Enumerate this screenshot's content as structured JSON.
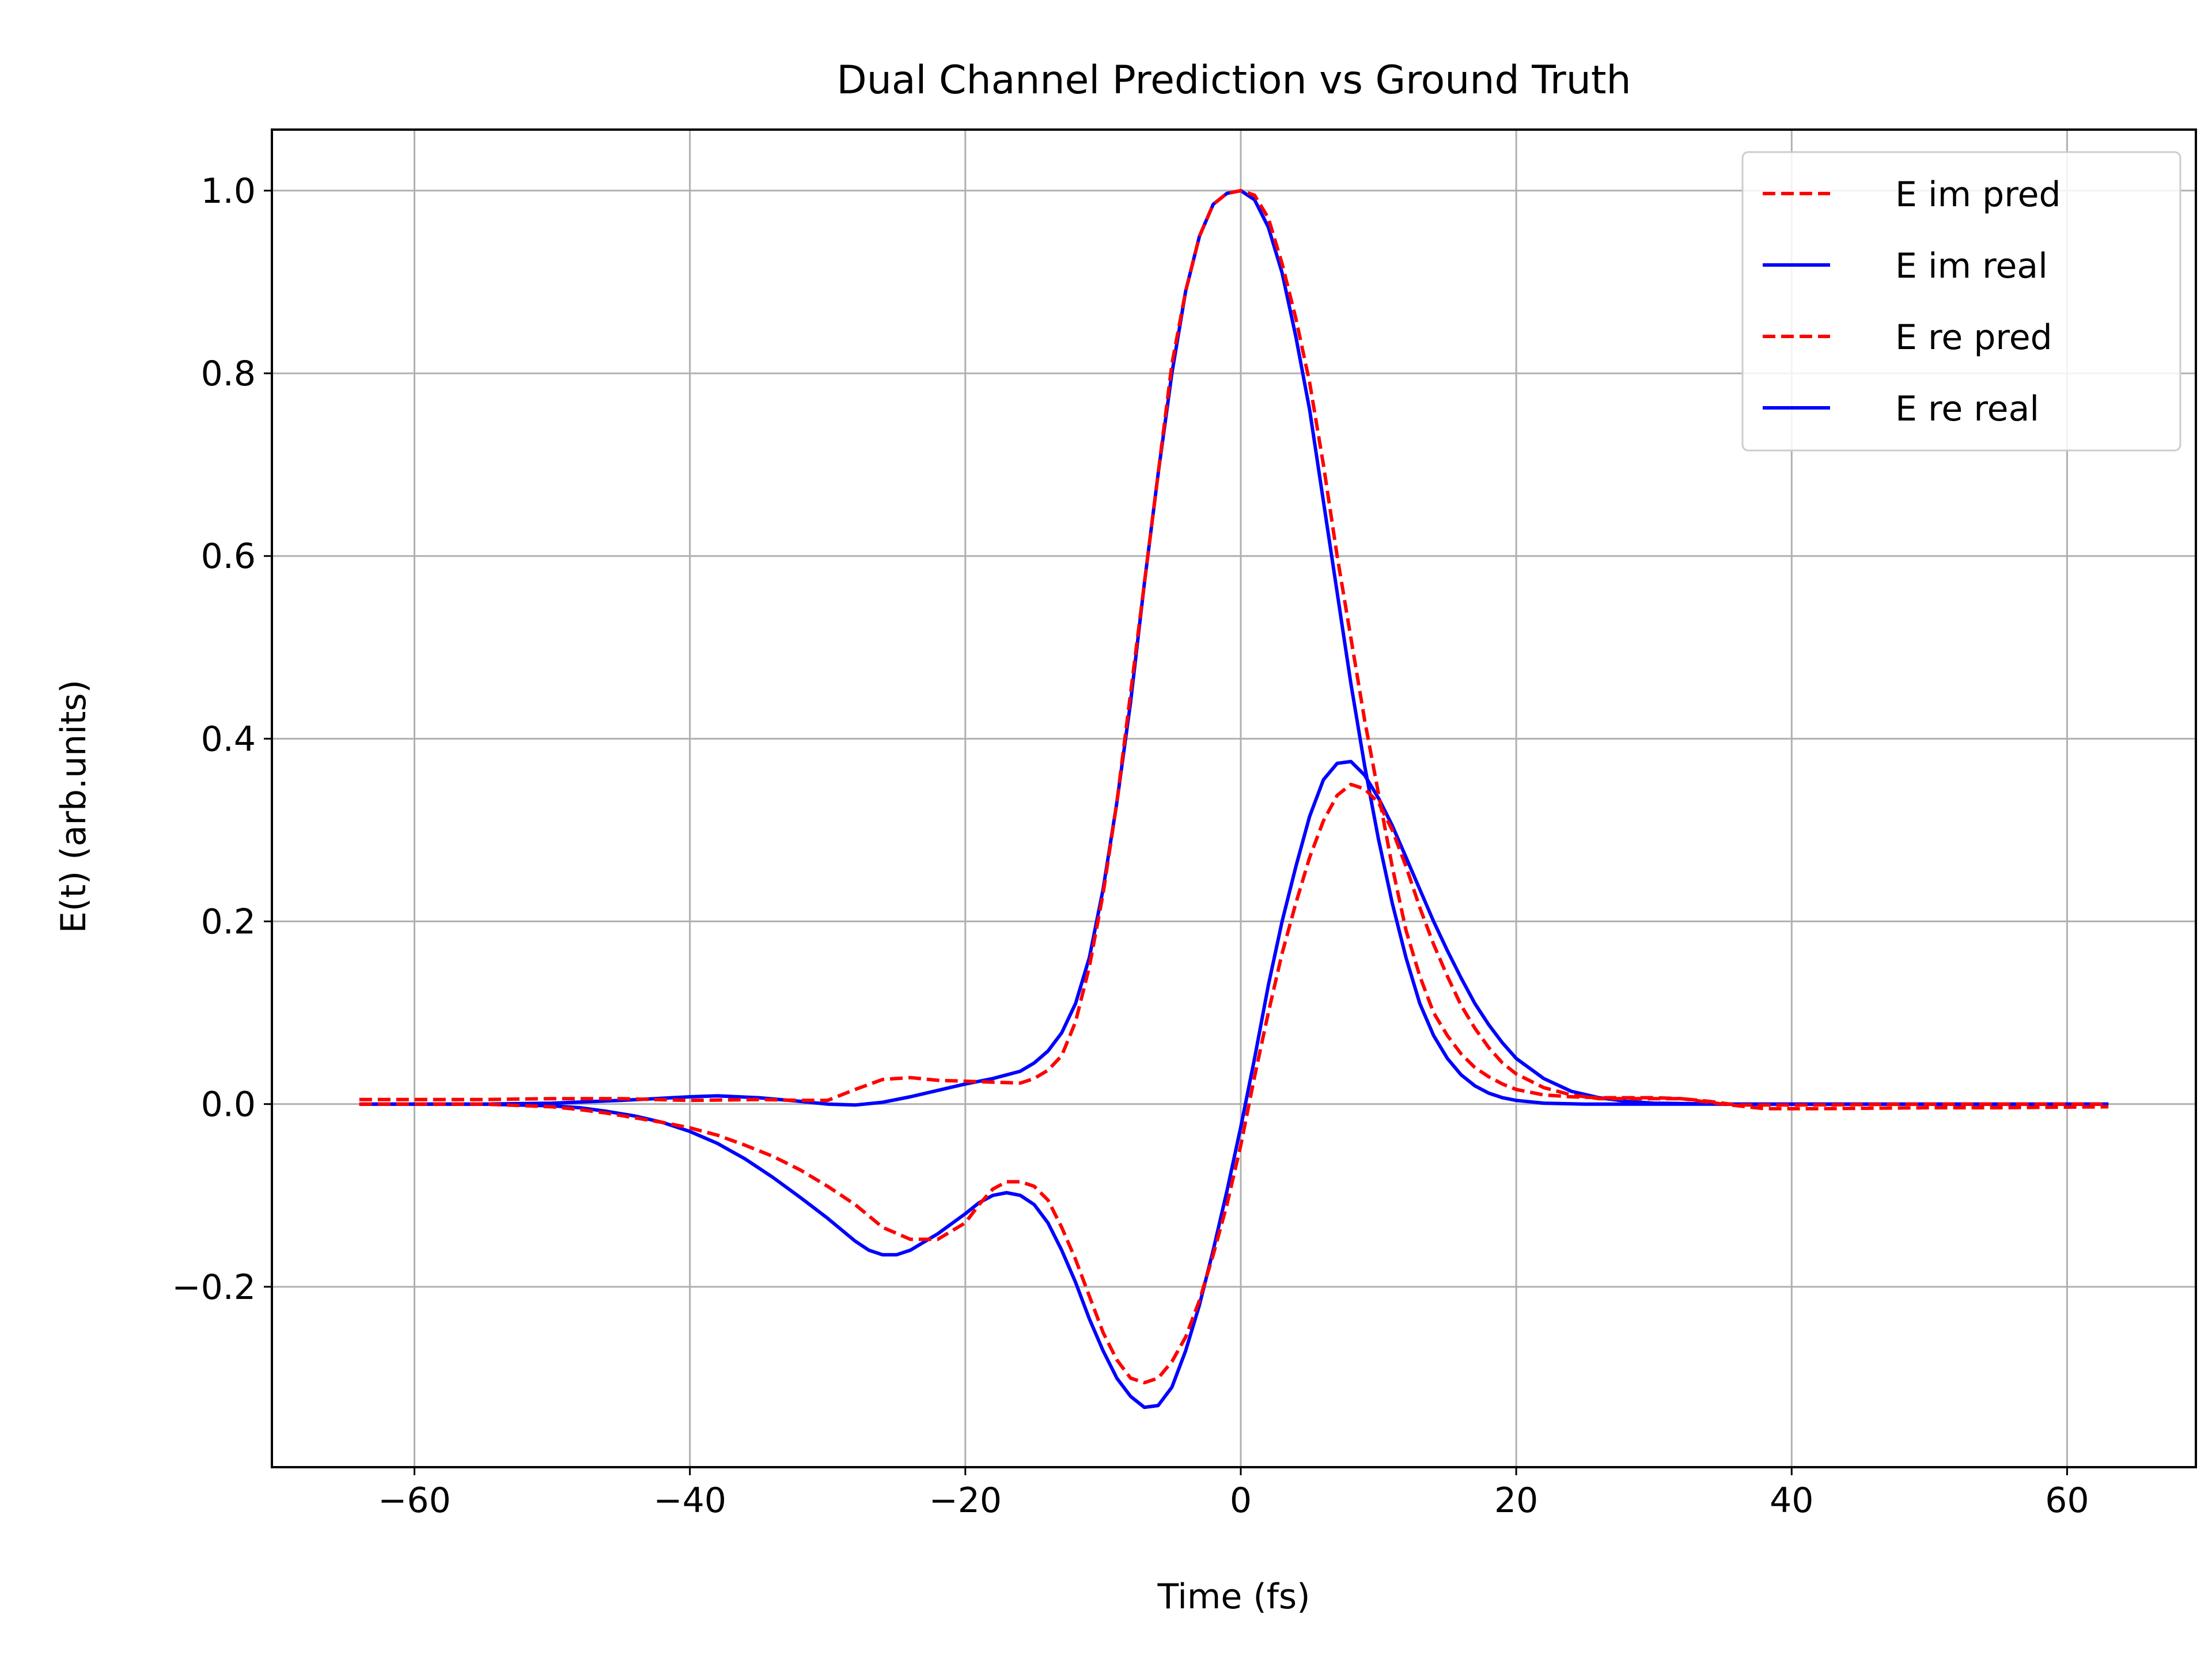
{
  "chart_data": {
    "type": "line",
    "title": "Dual Channel Prediction vs Ground Truth",
    "xlabel": "Time (fs)",
    "ylabel": "E(t) (arb.units)",
    "xlim": [
      -70.35,
      69.35
    ],
    "ylim": [
      -0.3975,
      1.0668
    ],
    "xticks": [
      -60,
      -40,
      -20,
      0,
      20,
      40,
      60
    ],
    "xtick_labels": [
      "−60",
      "−40",
      "−20",
      "0",
      "20",
      "40",
      "60"
    ],
    "yticks": [
      -0.2,
      0.0,
      0.2,
      0.4,
      0.6,
      0.8,
      1.0
    ],
    "ytick_labels": [
      "−0.2",
      "0.0",
      "0.2",
      "0.4",
      "0.6",
      "0.8",
      "1.0"
    ],
    "grid": true,
    "legend_position": "top-right",
    "series": [
      {
        "name": "E im pred",
        "color": "#ff0000",
        "style": "dashed",
        "points": [
          [
            -64,
            0.005
          ],
          [
            -55,
            0.005
          ],
          [
            -50,
            0.006
          ],
          [
            -45,
            0.006
          ],
          [
            -40,
            0.004
          ],
          [
            -35,
            0.005
          ],
          [
            -32,
            0.004
          ],
          [
            -30,
            0.004
          ],
          [
            -28,
            0.016
          ],
          [
            -26,
            0.027
          ],
          [
            -24,
            0.029
          ],
          [
            -22,
            0.026
          ],
          [
            -20,
            0.025
          ],
          [
            -18,
            0.024
          ],
          [
            -16,
            0.023
          ],
          [
            -15,
            0.028
          ],
          [
            -14,
            0.037
          ],
          [
            -13,
            0.053
          ],
          [
            -12,
            0.09
          ],
          [
            -11,
            0.15
          ],
          [
            -10,
            0.23
          ],
          [
            -9,
            0.33
          ],
          [
            -8,
            0.45
          ],
          [
            -7,
            0.57
          ],
          [
            -6,
            0.69
          ],
          [
            -5,
            0.81
          ],
          [
            -4,
            0.89
          ],
          [
            -3,
            0.95
          ],
          [
            -2,
            0.985
          ],
          [
            -1,
            0.997
          ],
          [
            0,
            1.0
          ],
          [
            1,
            0.995
          ],
          [
            2,
            0.97
          ],
          [
            3,
            0.92
          ],
          [
            4,
            0.86
          ],
          [
            5,
            0.79
          ],
          [
            6,
            0.7
          ],
          [
            7,
            0.6
          ],
          [
            8,
            0.51
          ],
          [
            9,
            0.42
          ],
          [
            10,
            0.34
          ],
          [
            11,
            0.26
          ],
          [
            12,
            0.19
          ],
          [
            13,
            0.14
          ],
          [
            14,
            0.1
          ],
          [
            15,
            0.075
          ],
          [
            16,
            0.055
          ],
          [
            17,
            0.04
          ],
          [
            18,
            0.03
          ],
          [
            19,
            0.022
          ],
          [
            20,
            0.016
          ],
          [
            22,
            0.01
          ],
          [
            24,
            0.008
          ],
          [
            26,
            0.007
          ],
          [
            28,
            0.007
          ],
          [
            30,
            0.007
          ],
          [
            32,
            0.006
          ],
          [
            35,
            0.0
          ],
          [
            38,
            -0.005
          ],
          [
            42,
            -0.005
          ],
          [
            50,
            -0.004
          ],
          [
            55,
            -0.004
          ],
          [
            63,
            -0.003
          ]
        ]
      },
      {
        "name": "E im real",
        "color": "#0000ff",
        "style": "solid",
        "points": [
          [
            -64,
            0.0
          ],
          [
            -55,
            0.0
          ],
          [
            -50,
            0.001
          ],
          [
            -45,
            0.004
          ],
          [
            -40,
            0.008
          ],
          [
            -38,
            0.009
          ],
          [
            -35,
            0.007
          ],
          [
            -32,
            0.003
          ],
          [
            -30,
            0.0
          ],
          [
            -28,
            -0.001
          ],
          [
            -26,
            0.002
          ],
          [
            -24,
            0.008
          ],
          [
            -22,
            0.015
          ],
          [
            -20,
            0.022
          ],
          [
            -18,
            0.028
          ],
          [
            -16,
            0.036
          ],
          [
            -15,
            0.045
          ],
          [
            -14,
            0.058
          ],
          [
            -13,
            0.078
          ],
          [
            -12,
            0.11
          ],
          [
            -11,
            0.16
          ],
          [
            -10,
            0.235
          ],
          [
            -9,
            0.33
          ],
          [
            -8,
            0.44
          ],
          [
            -7,
            0.57
          ],
          [
            -6,
            0.69
          ],
          [
            -5,
            0.8
          ],
          [
            -4,
            0.89
          ],
          [
            -3,
            0.95
          ],
          [
            -2,
            0.985
          ],
          [
            -1,
            0.997
          ],
          [
            0,
            1.0
          ],
          [
            1,
            0.99
          ],
          [
            2,
            0.96
          ],
          [
            3,
            0.91
          ],
          [
            4,
            0.84
          ],
          [
            5,
            0.76
          ],
          [
            6,
            0.66
          ],
          [
            7,
            0.56
          ],
          [
            8,
            0.46
          ],
          [
            9,
            0.37
          ],
          [
            10,
            0.29
          ],
          [
            11,
            0.22
          ],
          [
            12,
            0.16
          ],
          [
            13,
            0.11
          ],
          [
            14,
            0.075
          ],
          [
            15,
            0.05
          ],
          [
            16,
            0.032
          ],
          [
            17,
            0.02
          ],
          [
            18,
            0.012
          ],
          [
            19,
            0.007
          ],
          [
            20,
            0.004
          ],
          [
            22,
            0.001
          ],
          [
            25,
            0.0
          ],
          [
            30,
            0.0
          ],
          [
            40,
            0.0
          ],
          [
            50,
            0.0
          ],
          [
            63,
            0.0
          ]
        ]
      },
      {
        "name": "E re pred",
        "color": "#ff0000",
        "style": "dashed",
        "points": [
          [
            -64,
            0.0
          ],
          [
            -55,
            0.0
          ],
          [
            -50,
            -0.003
          ],
          [
            -48,
            -0.006
          ],
          [
            -46,
            -0.01
          ],
          [
            -44,
            -0.015
          ],
          [
            -42,
            -0.02
          ],
          [
            -40,
            -0.026
          ],
          [
            -38,
            -0.034
          ],
          [
            -36,
            -0.045
          ],
          [
            -34,
            -0.057
          ],
          [
            -32,
            -0.072
          ],
          [
            -30,
            -0.09
          ],
          [
            -28,
            -0.11
          ],
          [
            -26,
            -0.135
          ],
          [
            -24,
            -0.148
          ],
          [
            -22,
            -0.148
          ],
          [
            -20,
            -0.13
          ],
          [
            -19,
            -0.11
          ],
          [
            -18,
            -0.093
          ],
          [
            -17,
            -0.085
          ],
          [
            -16,
            -0.085
          ],
          [
            -15,
            -0.09
          ],
          [
            -14,
            -0.105
          ],
          [
            -13,
            -0.135
          ],
          [
            -12,
            -0.17
          ],
          [
            -11,
            -0.21
          ],
          [
            -10,
            -0.25
          ],
          [
            -9,
            -0.28
          ],
          [
            -8,
            -0.3
          ],
          [
            -7,
            -0.305
          ],
          [
            -6,
            -0.3
          ],
          [
            -5,
            -0.282
          ],
          [
            -4,
            -0.255
          ],
          [
            -3,
            -0.215
          ],
          [
            -2,
            -0.165
          ],
          [
            -1,
            -0.11
          ],
          [
            0,
            -0.045
          ],
          [
            1,
            0.03
          ],
          [
            2,
            0.1
          ],
          [
            3,
            0.165
          ],
          [
            4,
            0.22
          ],
          [
            5,
            0.27
          ],
          [
            6,
            0.31
          ],
          [
            7,
            0.338
          ],
          [
            8,
            0.35
          ],
          [
            9,
            0.345
          ],
          [
            10,
            0.33
          ],
          [
            11,
            0.3
          ],
          [
            12,
            0.26
          ],
          [
            13,
            0.215
          ],
          [
            14,
            0.175
          ],
          [
            15,
            0.14
          ],
          [
            16,
            0.108
          ],
          [
            17,
            0.083
          ],
          [
            18,
            0.062
          ],
          [
            19,
            0.045
          ],
          [
            20,
            0.033
          ],
          [
            22,
            0.018
          ],
          [
            24,
            0.01
          ],
          [
            26,
            0.006
          ],
          [
            28,
            0.006
          ],
          [
            30,
            0.006
          ],
          [
            32,
            0.006
          ],
          [
            34,
            0.003
          ],
          [
            36,
            -0.001
          ],
          [
            40,
            -0.001
          ],
          [
            50,
            0.0
          ],
          [
            63,
            0.0
          ]
        ]
      },
      {
        "name": "E re real",
        "color": "#0000ff",
        "style": "solid",
        "points": [
          [
            -64,
            0.0
          ],
          [
            -55,
            0.0
          ],
          [
            -50,
            -0.002
          ],
          [
            -48,
            -0.004
          ],
          [
            -46,
            -0.008
          ],
          [
            -44,
            -0.013
          ],
          [
            -42,
            -0.02
          ],
          [
            -40,
            -0.03
          ],
          [
            -38,
            -0.043
          ],
          [
            -36,
            -0.06
          ],
          [
            -34,
            -0.08
          ],
          [
            -32,
            -0.102
          ],
          [
            -30,
            -0.125
          ],
          [
            -28,
            -0.15
          ],
          [
            -27,
            -0.16
          ],
          [
            -26,
            -0.165
          ],
          [
            -25,
            -0.165
          ],
          [
            -24,
            -0.16
          ],
          [
            -22,
            -0.142
          ],
          [
            -20,
            -0.12
          ],
          [
            -19,
            -0.108
          ],
          [
            -18,
            -0.1
          ],
          [
            -17,
            -0.097
          ],
          [
            -16,
            -0.1
          ],
          [
            -15,
            -0.11
          ],
          [
            -14,
            -0.13
          ],
          [
            -13,
            -0.16
          ],
          [
            -12,
            -0.195
          ],
          [
            -11,
            -0.235
          ],
          [
            -10,
            -0.27
          ],
          [
            -9,
            -0.3
          ],
          [
            -8,
            -0.32
          ],
          [
            -7,
            -0.332
          ],
          [
            -6,
            -0.33
          ],
          [
            -5,
            -0.31
          ],
          [
            -4,
            -0.27
          ],
          [
            -3,
            -0.22
          ],
          [
            -2,
            -0.16
          ],
          [
            -1,
            -0.095
          ],
          [
            0,
            -0.025
          ],
          [
            1,
            0.05
          ],
          [
            2,
            0.13
          ],
          [
            3,
            0.2
          ],
          [
            4,
            0.26
          ],
          [
            5,
            0.315
          ],
          [
            6,
            0.355
          ],
          [
            7,
            0.373
          ],
          [
            8,
            0.375
          ],
          [
            9,
            0.36
          ],
          [
            10,
            0.335
          ],
          [
            11,
            0.305
          ],
          [
            12,
            0.27
          ],
          [
            13,
            0.235
          ],
          [
            14,
            0.2
          ],
          [
            15,
            0.168
          ],
          [
            16,
            0.138
          ],
          [
            17,
            0.11
          ],
          [
            18,
            0.087
          ],
          [
            19,
            0.067
          ],
          [
            20,
            0.05
          ],
          [
            22,
            0.028
          ],
          [
            24,
            0.014
          ],
          [
            26,
            0.007
          ],
          [
            28,
            0.003
          ],
          [
            30,
            0.001
          ],
          [
            35,
            0.0
          ],
          [
            40,
            0.0
          ],
          [
            50,
            0.0
          ],
          [
            63,
            0.0
          ]
        ]
      }
    ]
  }
}
